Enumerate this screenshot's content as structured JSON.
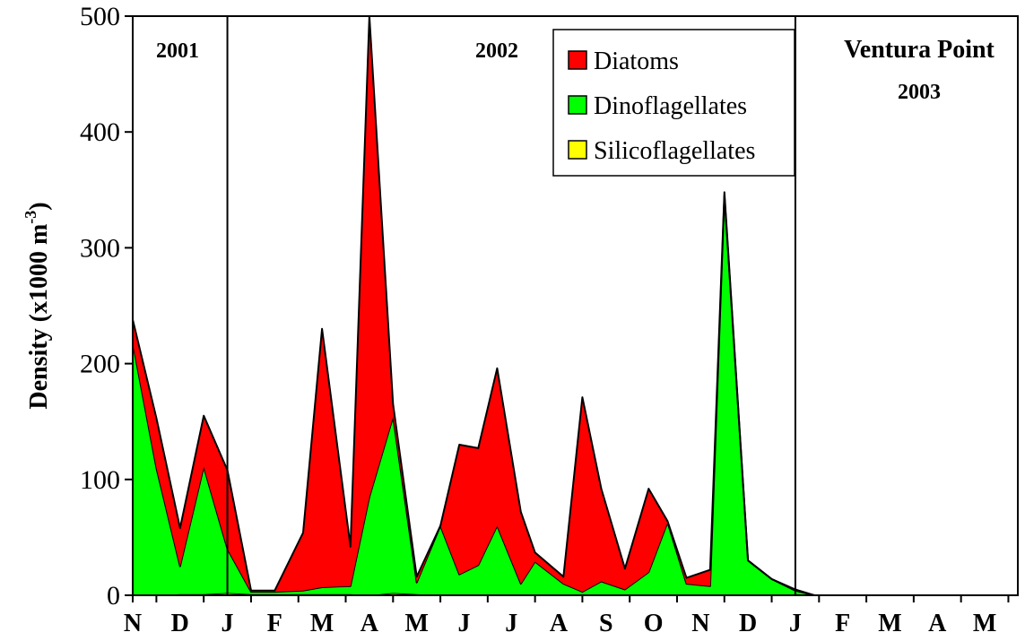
{
  "chart_data": {
    "type": "area",
    "stacked": true,
    "ylabel": "Density (x1000 m",
    "ylabel_sup": "-3",
    "ylabel_close": ")",
    "ylim": [
      0,
      500
    ],
    "yticks": [
      0,
      100,
      200,
      300,
      400,
      500
    ],
    "x_tick_labels": [
      "N",
      "D",
      "J",
      "F",
      "M",
      "A",
      "M",
      "J",
      "J",
      "A",
      "S",
      "O",
      "N",
      "D",
      "J",
      "F",
      "M",
      "A",
      "M"
    ],
    "x_domain": [
      0,
      18.7
    ],
    "year_dividers": [
      2,
      14
    ],
    "year_labels": [
      "2001",
      "2002",
      "2003"
    ],
    "site_label": "Ventura Point",
    "legend_position": "top-center",
    "colors": {
      "diatoms": "#ff0000",
      "dinoflagellates": "#00ff00",
      "silicoflagellates": "#ffff00",
      "outline": "#000000"
    },
    "x": [
      0,
      0.5,
      1,
      1.5,
      2,
      2.5,
      3,
      3.6,
      4,
      4.6,
      5,
      5.5,
      6,
      6.5,
      6.9,
      7.3,
      7.7,
      8.2,
      8.5,
      9.1,
      9.5,
      9.9,
      10.4,
      10.9,
      11.3,
      11.7,
      12.2,
      12.5,
      13,
      13.5,
      14,
      14.4,
      14.8,
      15.5,
      16,
      17,
      18,
      18.7
    ],
    "series": [
      {
        "name": "Silicoflagellates",
        "values": [
          0,
          0,
          1,
          1,
          2,
          1,
          1,
          1,
          1,
          1,
          0,
          2,
          1,
          0,
          0,
          0,
          0,
          0,
          0,
          0,
          0,
          0,
          0,
          0,
          0,
          0,
          0,
          0,
          0,
          0,
          1,
          0,
          0,
          0,
          0,
          0,
          0,
          0
        ]
      },
      {
        "name": "Dinoflagellates",
        "values": [
          218,
          110,
          24,
          110,
          38,
          2,
          2,
          3,
          6,
          7,
          85,
          152,
          10,
          60,
          18,
          26,
          60,
          10,
          29,
          10,
          3,
          12,
          5,
          20,
          63,
          10,
          8,
          345,
          30,
          14,
          3,
          0,
          0,
          0,
          0,
          0,
          0,
          0
        ]
      },
      {
        "name": "Diatoms",
        "values": [
          20,
          43,
          33,
          44,
          68,
          1,
          1,
          50,
          223,
          34,
          415,
          11,
          5,
          0,
          112,
          101,
          136,
          62,
          8,
          6,
          168,
          80,
          18,
          72,
          1,
          5,
          14,
          3,
          0,
          0,
          1,
          0,
          0,
          0,
          0,
          0,
          0,
          0
        ]
      }
    ]
  }
}
